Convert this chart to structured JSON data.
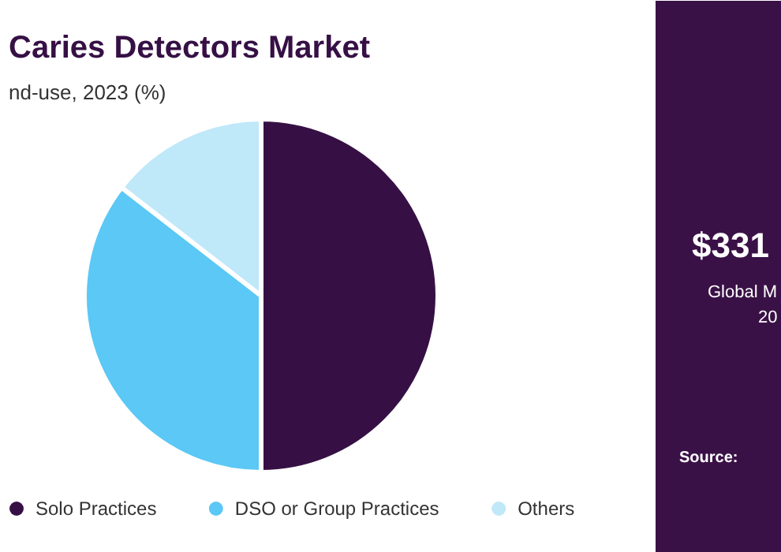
{
  "chart_data": {
    "type": "pie",
    "title": "Caries Detectors Market",
    "subtitle": "nd-use, 2023 (%)",
    "categories": [
      "Solo Practices",
      "DSO or Group Practices",
      "Others"
    ],
    "values": [
      50,
      35.5,
      14.5
    ],
    "colors": [
      "#361045",
      "#5bc8f5",
      "#bfe8f9"
    ],
    "legend": "bottom",
    "annotations": [
      "$331",
      "Global M",
      "20",
      "Source:"
    ]
  }
}
